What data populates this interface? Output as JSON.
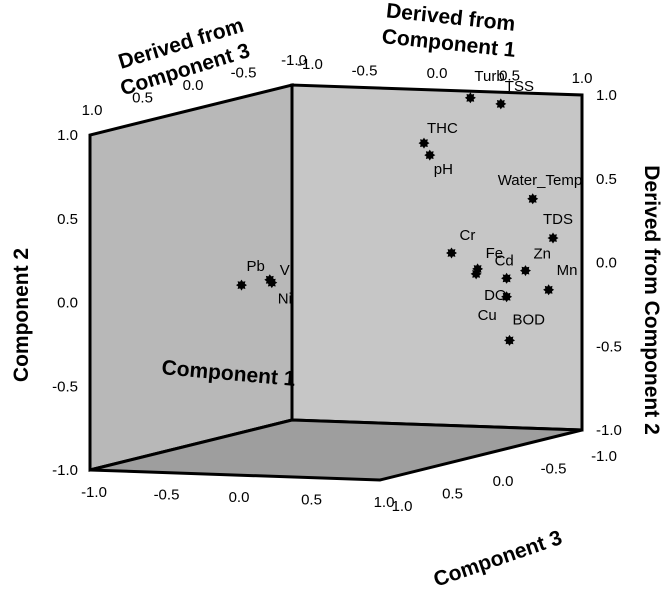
{
  "chart_data": {
    "type": "scatter",
    "subtype": "3d-loading-plot",
    "colors": {
      "left_wall": "#b8b8b8",
      "back_wall": "#c6c6c6",
      "floor": "#9e9e9e",
      "edges": "#000000",
      "marker": "#000000"
    },
    "axes": {
      "x": {
        "label": "Component 1",
        "ticks": [
          "-1.0",
          "-0.5",
          "0.0",
          "0.5",
          "1.0"
        ]
      },
      "y": {
        "label": "Component 2",
        "ticks": [
          "1.0",
          "0.5",
          "0.0",
          "-0.5",
          "-1.0"
        ]
      },
      "z": {
        "label": "Component 3",
        "ticks": [
          "1.0",
          "0.5",
          "0.0",
          "-0.5",
          "-1.0"
        ]
      },
      "derived_x": {
        "label_line1": "Derived from",
        "label_line2": "Component 1",
        "ticks": [
          "-0.5",
          "0.0",
          "0.5",
          "1.0"
        ],
        "corner_tick": "-1.0"
      },
      "derived_y": {
        "label": "Derived from Component 2",
        "ticks": [
          "1.0",
          "0.5",
          "0.0",
          "-0.5",
          "-1.0"
        ]
      },
      "derived_z": {
        "label_line1": "Derived from",
        "label_line2": "Component 3",
        "ticks": [
          "1.0",
          "0.5",
          "0.0",
          "-0.5",
          "-1.0"
        ]
      }
    },
    "points": [
      {
        "label": "Turb",
        "x": 0.23,
        "y": 0.96,
        "z": -1.0
      },
      {
        "label": "TSS",
        "x": 0.44,
        "y": 0.93,
        "z": -1.0
      },
      {
        "label": "THC",
        "x": -0.09,
        "y": 0.68,
        "z": -1.0
      },
      {
        "label": "pH",
        "x": -0.05,
        "y": 0.61,
        "z": -1.0
      },
      {
        "label": "Water_Temp",
        "x": 0.66,
        "y": 0.37,
        "z": -1.0
      },
      {
        "label": "TDS",
        "x": 0.8,
        "y": 0.14,
        "z": -1.0
      },
      {
        "label": "Cr",
        "x": 0.1,
        "y": 0.03,
        "z": -1.0
      },
      {
        "label": "Fe",
        "x": 0.28,
        "y": -0.06,
        "z": -1.0
      },
      {
        "label": "DO",
        "x": 0.27,
        "y": -0.09,
        "z": -1.0
      },
      {
        "label": "Cd",
        "x": 0.48,
        "y": -0.11,
        "z": -1.0
      },
      {
        "label": "Zn",
        "x": 0.61,
        "y": -0.06,
        "z": -1.0
      },
      {
        "label": "Mn",
        "x": 0.77,
        "y": -0.17,
        "z": -1.0
      },
      {
        "label": "Cu",
        "x": 0.48,
        "y": -0.22,
        "z": -1.0
      },
      {
        "label": "BOD",
        "x": 0.5,
        "y": -0.48,
        "z": -1.0
      },
      {
        "label": "Pb",
        "x": -1.0,
        "y": -0.12,
        "z": -0.5
      },
      {
        "label": "V",
        "x": -1.0,
        "y": -0.13,
        "z": -0.78
      },
      {
        "label": "Ni",
        "x": -1.0,
        "y": -0.15,
        "z": -0.8
      }
    ]
  }
}
